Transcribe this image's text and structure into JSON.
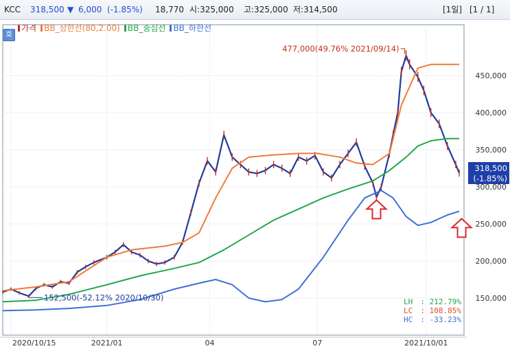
{
  "header": {
    "name": "KCC",
    "price": "318,500",
    "change_arrow": "▼",
    "change": "6,000",
    "change_pct": "(-1.85%)",
    "volume": "18,770",
    "open": "시:325,000",
    "high": "고:325,000",
    "low": "저:314,500",
    "period": "[1일]",
    "page": "[1 / 1]"
  },
  "side_button": "호",
  "chart_data": {
    "type": "line",
    "legend": [
      {
        "label": "가격",
        "color": "#b8341f"
      },
      {
        "label": "BB_상한선(80,2.00)",
        "color": "#ef7b39"
      },
      {
        "label": "BB_중심선",
        "color": "#22a84a"
      },
      {
        "label": "BB_하한선",
        "color": "#3d6fd6"
      }
    ],
    "x_ticks": [
      {
        "date": "2020-10-15",
        "label": "2020/10/15"
      },
      {
        "date": "2021-01-04",
        "label": "2021/01"
      },
      {
        "date": "2021-04-01",
        "label": "04"
      },
      {
        "date": "2021-07-01",
        "label": "07"
      },
      {
        "date": "2021-10-01",
        "label": "2021/10/01"
      }
    ],
    "x_range": [
      "2020-10-08",
      "2021-11-02"
    ],
    "y_range": [
      100000,
      500000
    ],
    "y_ticks": [
      {
        "value": 150000,
        "label": "150,000"
      },
      {
        "value": 200000,
        "label": "200,000"
      },
      {
        "value": 250000,
        "label": "250,000"
      },
      {
        "value": 300000,
        "label": "300,000"
      },
      {
        "value": 350000,
        "label": "350,000"
      },
      {
        "value": 400000,
        "label": "400,000"
      },
      {
        "value": 450000,
        "label": "450,000"
      }
    ],
    "last_price_label": "318,500",
    "last_price_pct": "(-1.85%)",
    "last_price": 318500,
    "series": [
      {
        "name": "가격",
        "color": "#1f3a9c",
        "x": [
          "2020-10-08",
          "2020-10-15",
          "2020-10-22",
          "2020-10-30",
          "2020-11-05",
          "2020-11-12",
          "2020-11-19",
          "2020-11-26",
          "2020-12-03",
          "2020-12-10",
          "2020-12-17",
          "2020-12-24",
          "2021-01-04",
          "2021-01-11",
          "2021-01-18",
          "2021-01-25",
          "2021-02-01",
          "2021-02-08",
          "2021-02-15",
          "2021-02-22",
          "2021-03-02",
          "2021-03-09",
          "2021-03-16",
          "2021-03-23",
          "2021-03-30",
          "2021-04-06",
          "2021-04-13",
          "2021-04-20",
          "2021-04-27",
          "2021-05-04",
          "2021-05-11",
          "2021-05-18",
          "2021-05-25",
          "2021-06-01",
          "2021-06-08",
          "2021-06-15",
          "2021-06-22",
          "2021-06-29",
          "2021-07-06",
          "2021-07-13",
          "2021-07-20",
          "2021-07-27",
          "2021-08-03",
          "2021-08-10",
          "2021-08-17",
          "2021-08-20",
          "2021-08-24",
          "2021-08-31",
          "2021-09-03",
          "2021-09-07",
          "2021-09-10",
          "2021-09-14",
          "2021-09-17",
          "2021-09-24",
          "2021-09-29",
          "2021-10-05",
          "2021-10-12",
          "2021-10-19",
          "2021-10-26",
          "2021-10-29"
        ],
        "values": [
          158000,
          162000,
          157000,
          152500,
          163000,
          168000,
          165000,
          172000,
          170000,
          185000,
          192000,
          198000,
          205000,
          212000,
          222000,
          212000,
          208000,
          200000,
          196000,
          198000,
          205000,
          225000,
          265000,
          305000,
          335000,
          320000,
          370000,
          340000,
          330000,
          320000,
          318000,
          322000,
          330000,
          325000,
          318000,
          340000,
          335000,
          342000,
          320000,
          312000,
          330000,
          345000,
          360000,
          328000,
          305000,
          286000,
          300000,
          345000,
          370000,
          400000,
          455000,
          477000,
          465000,
          448000,
          430000,
          400000,
          385000,
          355000,
          330000,
          318500
        ]
      },
      {
        "name": "BB_상한선",
        "color": "#ef7b39",
        "x": [
          "2020-10-08",
          "2020-11-05",
          "2020-12-03",
          "2021-01-04",
          "2021-01-25",
          "2021-02-22",
          "2021-03-09",
          "2021-03-23",
          "2021-04-06",
          "2021-04-20",
          "2021-05-04",
          "2021-05-25",
          "2021-06-15",
          "2021-07-01",
          "2021-07-20",
          "2021-08-03",
          "2021-08-17",
          "2021-08-31",
          "2021-09-10",
          "2021-09-24",
          "2021-10-05",
          "2021-10-19",
          "2021-10-29"
        ],
        "values": [
          160000,
          165000,
          172000,
          205000,
          215000,
          220000,
          225000,
          238000,
          285000,
          325000,
          340000,
          343000,
          345000,
          345000,
          340000,
          332000,
          330000,
          345000,
          410000,
          460000,
          465000,
          465000,
          465000
        ]
      },
      {
        "name": "BB_중심선",
        "color": "#22a84a",
        "x": [
          "2020-10-08",
          "2020-11-05",
          "2020-12-03",
          "2021-01-04",
          "2021-02-01",
          "2021-03-02",
          "2021-03-23",
          "2021-04-13",
          "2021-05-04",
          "2021-05-25",
          "2021-06-15",
          "2021-07-06",
          "2021-07-27",
          "2021-08-17",
          "2021-08-31",
          "2021-09-14",
          "2021-09-24",
          "2021-10-05",
          "2021-10-19",
          "2021-10-29"
        ],
        "values": [
          145000,
          147000,
          155000,
          168000,
          180000,
          190000,
          198000,
          215000,
          235000,
          255000,
          270000,
          285000,
          297000,
          308000,
          322000,
          340000,
          355000,
          362000,
          365000,
          365000
        ]
      },
      {
        "name": "BB_하한선",
        "color": "#3d6fd6",
        "x": [
          "2020-10-08",
          "2020-11-05",
          "2020-12-03",
          "2021-01-04",
          "2021-02-01",
          "2021-03-02",
          "2021-03-23",
          "2021-04-06",
          "2021-04-20",
          "2021-05-04",
          "2021-05-18",
          "2021-06-01",
          "2021-06-15",
          "2021-07-06",
          "2021-07-27",
          "2021-08-10",
          "2021-08-24",
          "2021-09-03",
          "2021-09-14",
          "2021-09-24",
          "2021-10-05",
          "2021-10-19",
          "2021-10-29"
        ],
        "values": [
          133000,
          134000,
          136000,
          140000,
          148000,
          162000,
          170000,
          175000,
          168000,
          150000,
          145000,
          148000,
          162000,
          205000,
          255000,
          285000,
          295000,
          285000,
          260000,
          248000,
          252000,
          262000,
          267000
        ]
      }
    ],
    "annotations": [
      {
        "text": "477,000(49.76% 2021/09/14)",
        "date": "2021-09-14",
        "value": 477000,
        "color": "#c0301a"
      },
      {
        "text": "152,500(-52.12% 2020/10/30)",
        "date": "2020-10-30",
        "value": 152500,
        "color": "#1f3a9c"
      }
    ],
    "stats": [
      {
        "label": "LH",
        "value": "212.79%",
        "color": "#22a84a"
      },
      {
        "label": "LC",
        "value": "108.85%",
        "color": "#e0502a"
      },
      {
        "label": "HC",
        "value": "-33.23%",
        "color": "#3d6fd6"
      }
    ],
    "markers": [
      {
        "type": "up-arrow",
        "date": "2021-08-20",
        "value": 270000,
        "color": "#d8282a"
      },
      {
        "type": "up-arrow",
        "date": "2021-10-31",
        "value": 245000,
        "color": "#d8282a"
      }
    ]
  }
}
